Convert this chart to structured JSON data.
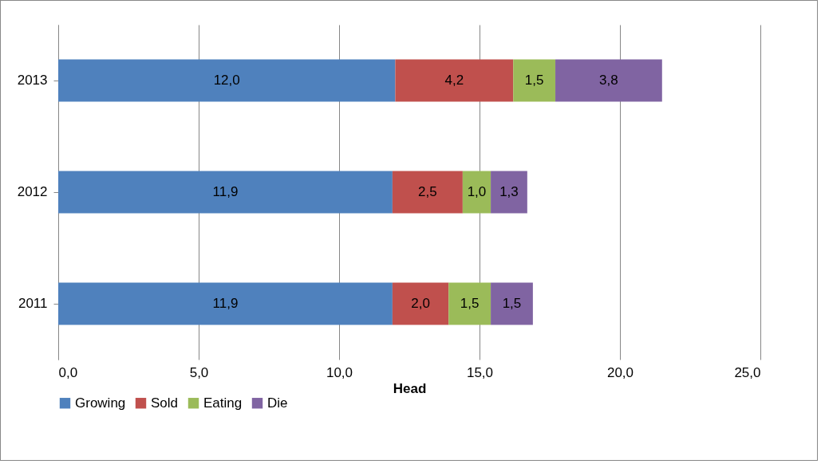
{
  "chart_data": {
    "type": "bar",
    "orientation": "horizontal",
    "stacked": true,
    "xlabel": "Head",
    "categories": [
      "2013",
      "2012",
      "2011"
    ],
    "series": [
      {
        "name": "Growing",
        "color": "#4f81bd",
        "values": [
          12.0,
          11.9,
          11.9
        ],
        "value_labels": [
          "12,0",
          "11,9",
          "11,9"
        ]
      },
      {
        "name": "Sold",
        "color": "#c0504d",
        "values": [
          4.2,
          2.5,
          2.0
        ],
        "value_labels": [
          "4,2",
          "2,5",
          "2,0"
        ]
      },
      {
        "name": "Eating",
        "color": "#9bbb59",
        "values": [
          1.5,
          1.0,
          1.5
        ],
        "value_labels": [
          "1,5",
          "1,0",
          "1,5"
        ]
      },
      {
        "name": "Die",
        "color": "#8064a2",
        "values": [
          3.8,
          1.3,
          1.5
        ],
        "value_labels": [
          "3,8",
          "1,3",
          "1,5"
        ]
      }
    ],
    "xlim": [
      0,
      25
    ],
    "xticks": [
      {
        "value": 0,
        "label": "0,0"
      },
      {
        "value": 5,
        "label": "5,0"
      },
      {
        "value": 10,
        "label": "10,0"
      },
      {
        "value": 15,
        "label": "15,0"
      },
      {
        "value": 20,
        "label": "20,0"
      },
      {
        "value": 25,
        "label": "25,0"
      }
    ],
    "grid": "x",
    "legend": "bottom"
  }
}
